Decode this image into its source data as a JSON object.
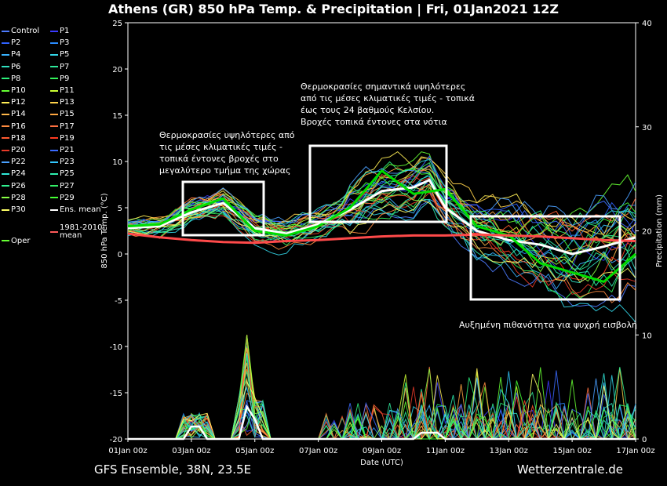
{
  "header": {
    "title": "Athens  (GR)  850 hPa Temp. & Precipitation | Fri, 01Jan2021 12Z"
  },
  "footer": {
    "left": "GFS Ensemble, 38N, 23.5E",
    "right": "Wetterzentrale.de"
  },
  "legend": [
    {
      "label": "Control",
      "color": "#4d7bff"
    },
    {
      "label": "P1",
      "color": "#3b3bff"
    },
    {
      "label": "P2",
      "color": "#2f62ff"
    },
    {
      "label": "P3",
      "color": "#2a8cff"
    },
    {
      "label": "P4",
      "color": "#39b3ff"
    },
    {
      "label": "P5",
      "color": "#33d6e8"
    },
    {
      "label": "P6",
      "color": "#30e0c0"
    },
    {
      "label": "P7",
      "color": "#2ee89a"
    },
    {
      "label": "P8",
      "color": "#2cf07a"
    },
    {
      "label": "P9",
      "color": "#33f25a"
    },
    {
      "label": "P10",
      "color": "#66ff33"
    },
    {
      "label": "P11",
      "color": "#ccff33"
    },
    {
      "label": "P12",
      "color": "#ffee55"
    },
    {
      "label": "P13",
      "color": "#ffd24a"
    },
    {
      "label": "P14",
      "color": "#ffb84a"
    },
    {
      "label": "P15",
      "color": "#ffa640"
    },
    {
      "label": "P16",
      "color": "#ff8c40"
    },
    {
      "label": "P17",
      "color": "#ff7040"
    },
    {
      "label": "P18",
      "color": "#ff5a30"
    },
    {
      "label": "P19",
      "color": "#ff3a20"
    },
    {
      "label": "P20",
      "color": "#e83a28"
    },
    {
      "label": "P21",
      "color": "#3b6bff"
    },
    {
      "label": "P22",
      "color": "#4aa0ff"
    },
    {
      "label": "P23",
      "color": "#33c8ff"
    },
    {
      "label": "P24",
      "color": "#30e8d8"
    },
    {
      "label": "P25",
      "color": "#2ef0b0"
    },
    {
      "label": "P26",
      "color": "#30f090"
    },
    {
      "label": "P27",
      "color": "#33ee66"
    },
    {
      "label": "P28",
      "color": "#88ff44"
    },
    {
      "label": "P29",
      "color": "#44ff33"
    },
    {
      "label": "P30",
      "color": "#ffff66"
    },
    {
      "label": "Ens. mean",
      "color": "#ffffff"
    },
    {
      "label": "Oper",
      "color": "#66ff33"
    },
    {
      "label": "1981-2010 mean",
      "color": "#ff5a5a"
    }
  ],
  "annotations": {
    "a1": [
      "Θερμοκρασίες υψηλότερες από",
      "τις μέσες κλιματικές τιμές -",
      "τοπικά έντονες βροχές στο",
      "μεγαλύτερο τμήμα της χώρας"
    ],
    "a2": [
      "Θερμοκρασίες σημαντικά υψηλότερες",
      "από τις μέσες κλιματικές τιμές - τοπικά",
      "έως τους 24 βαθμούς Κελσίου.",
      "Βροχές τοπικά έντονες στα νότια"
    ],
    "a3": [
      "Αυξημένη πιθανότητα για ψυχρή εισβολή"
    ]
  },
  "chart_data": {
    "type": "line",
    "xlabel": "Date (UTC)",
    "ylabel": "850 hPa Temp. (°C)",
    "y2label": "Precipitation (mm)",
    "xlim": [
      0,
      16
    ],
    "ylim": [
      -20,
      25
    ],
    "y2lim": [
      0,
      40
    ],
    "x_ticks": [
      {
        "day": 0,
        "label": "01Jan 00z"
      },
      {
        "day": 2,
        "label": "03Jan 00z"
      },
      {
        "day": 4,
        "label": "05Jan 00z"
      },
      {
        "day": 6,
        "label": "07Jan 00z"
      },
      {
        "day": 8,
        "label": "09Jan 00z"
      },
      {
        "day": 10,
        "label": "11Jan 00z"
      },
      {
        "day": 12,
        "label": "13Jan 00z"
      },
      {
        "day": 14,
        "label": "15Jan 00z"
      },
      {
        "day": 16,
        "label": "17Jan 00z"
      }
    ],
    "y_ticks": [
      -20,
      -15,
      -10,
      -5,
      0,
      5,
      10,
      15,
      20,
      25
    ],
    "y2_ticks": [
      0,
      10,
      20,
      30,
      40
    ],
    "grid": false,
    "series": [
      {
        "name": "Ens. mean",
        "x": [
          0,
          1,
          2,
          3,
          4,
          5,
          6,
          7,
          8,
          9,
          9.5,
          10,
          11,
          12,
          13,
          14,
          15,
          16
        ],
        "values": [
          2.8,
          3.0,
          4.5,
          5.5,
          2.8,
          2.2,
          3.2,
          4.8,
          6.8,
          7.2,
          8.0,
          5.0,
          2.5,
          1.5,
          1.0,
          0.0,
          0.8,
          1.8
        ]
      },
      {
        "name": "Oper",
        "x": [
          0,
          1,
          2,
          3,
          4,
          5,
          6,
          7,
          8,
          9,
          10,
          11,
          12,
          13,
          14,
          15,
          16
        ],
        "values": [
          3.0,
          3.2,
          4.8,
          6.0,
          2.5,
          2.0,
          3.0,
          5.0,
          9.0,
          6.5,
          7.0,
          3.0,
          2.0,
          -1.0,
          -2.0,
          -3.0,
          0.0
        ]
      },
      {
        "name": "1981-2010 mean",
        "x": [
          0,
          1,
          2,
          3,
          4,
          5,
          6,
          7,
          8,
          9,
          10,
          11,
          12,
          13,
          14,
          15,
          16
        ],
        "values": [
          2.2,
          1.8,
          1.5,
          1.3,
          1.2,
          1.4,
          1.5,
          1.7,
          1.9,
          2.0,
          2.0,
          2.1,
          2.0,
          1.9,
          1.7,
          1.5,
          1.4
        ]
      }
    ]
  }
}
